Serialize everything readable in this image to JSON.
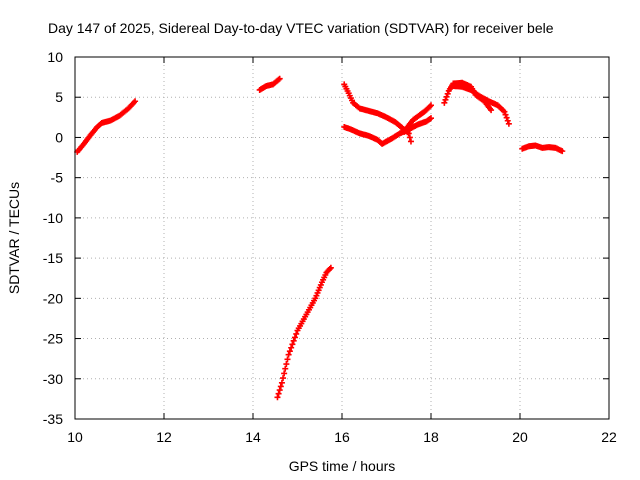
{
  "chart_data": {
    "type": "scatter",
    "title": "Day 147 of 2025, Sidereal Day-to-day VTEC variation (SDTVAR) for receiver bele",
    "xlabel": "GPS time / hours",
    "ylabel": "SDTVAR / TECUs",
    "xlim": [
      10,
      22
    ],
    "ylim": [
      -35,
      10
    ],
    "xticks": [
      "10",
      "12",
      "14",
      "16",
      "18",
      "20",
      "22"
    ],
    "yticks": [
      "10",
      "5",
      "0",
      "-5",
      "-10",
      "-15",
      "-20",
      "-25",
      "-30",
      "-35"
    ],
    "grid": true,
    "marker": "plus",
    "series": [
      {
        "name": "SDTVAR",
        "color": "#ff0000",
        "segments": [
          [
            [
              10.05,
              -1.8
            ],
            [
              10.2,
              -0.8
            ],
            [
              10.35,
              0.3
            ],
            [
              10.5,
              1.3
            ],
            [
              10.6,
              1.8
            ],
            [
              10.8,
              2.1
            ],
            [
              11.0,
              2.7
            ],
            [
              11.2,
              3.6
            ],
            [
              11.35,
              4.5
            ]
          ],
          [
            [
              14.15,
              5.9
            ],
            [
              14.3,
              6.4
            ],
            [
              14.45,
              6.6
            ],
            [
              14.6,
              7.3
            ]
          ],
          [
            [
              14.55,
              -32.3
            ],
            [
              14.65,
              -30.5
            ],
            [
              14.8,
              -27.0
            ],
            [
              15.0,
              -24.0
            ],
            [
              15.2,
              -22.0
            ],
            [
              15.4,
              -20.0
            ],
            [
              15.55,
              -18.0
            ],
            [
              15.65,
              -16.8
            ],
            [
              15.75,
              -16.2
            ]
          ],
          [
            [
              16.05,
              6.6
            ],
            [
              16.15,
              5.5
            ],
            [
              16.25,
              4.3
            ],
            [
              16.4,
              3.6
            ],
            [
              16.6,
              3.3
            ],
            [
              16.8,
              3.0
            ],
            [
              17.0,
              2.5
            ],
            [
              17.2,
              1.9
            ],
            [
              17.35,
              1.2
            ],
            [
              17.5,
              0.5
            ],
            [
              17.55,
              -0.5
            ]
          ],
          [
            [
              16.05,
              1.3
            ],
            [
              16.2,
              1.0
            ],
            [
              16.4,
              0.5
            ],
            [
              16.6,
              0.2
            ],
            [
              16.8,
              -0.3
            ],
            [
              16.9,
              -0.8
            ],
            [
              17.1,
              -0.2
            ],
            [
              17.3,
              0.5
            ],
            [
              17.5,
              1.0
            ],
            [
              17.7,
              1.6
            ],
            [
              17.9,
              2.0
            ],
            [
              18.0,
              2.4
            ]
          ],
          [
            [
              17.4,
              0.7
            ],
            [
              17.5,
              1.5
            ],
            [
              17.6,
              2.2
            ],
            [
              17.75,
              2.8
            ],
            [
              17.85,
              3.2
            ],
            [
              17.95,
              3.7
            ],
            [
              18.0,
              4.0
            ]
          ],
          [
            [
              18.3,
              4.3
            ],
            [
              18.4,
              5.8
            ],
            [
              18.5,
              6.7
            ],
            [
              18.7,
              6.8
            ],
            [
              18.9,
              6.3
            ],
            [
              19.0,
              5.3
            ],
            [
              19.2,
              4.5
            ],
            [
              19.35,
              3.4
            ]
          ],
          [
            [
              18.5,
              6.4
            ],
            [
              18.7,
              6.3
            ],
            [
              18.9,
              5.9
            ],
            [
              19.1,
              5.1
            ],
            [
              19.3,
              4.5
            ],
            [
              19.5,
              4.0
            ],
            [
              19.65,
              3.2
            ],
            [
              19.75,
              1.7
            ]
          ],
          [
            [
              20.05,
              -1.4
            ],
            [
              20.2,
              -1.1
            ],
            [
              20.35,
              -1.0
            ],
            [
              20.5,
              -1.3
            ],
            [
              20.65,
              -1.2
            ],
            [
              20.8,
              -1.3
            ],
            [
              20.95,
              -1.7
            ]
          ]
        ]
      }
    ]
  }
}
